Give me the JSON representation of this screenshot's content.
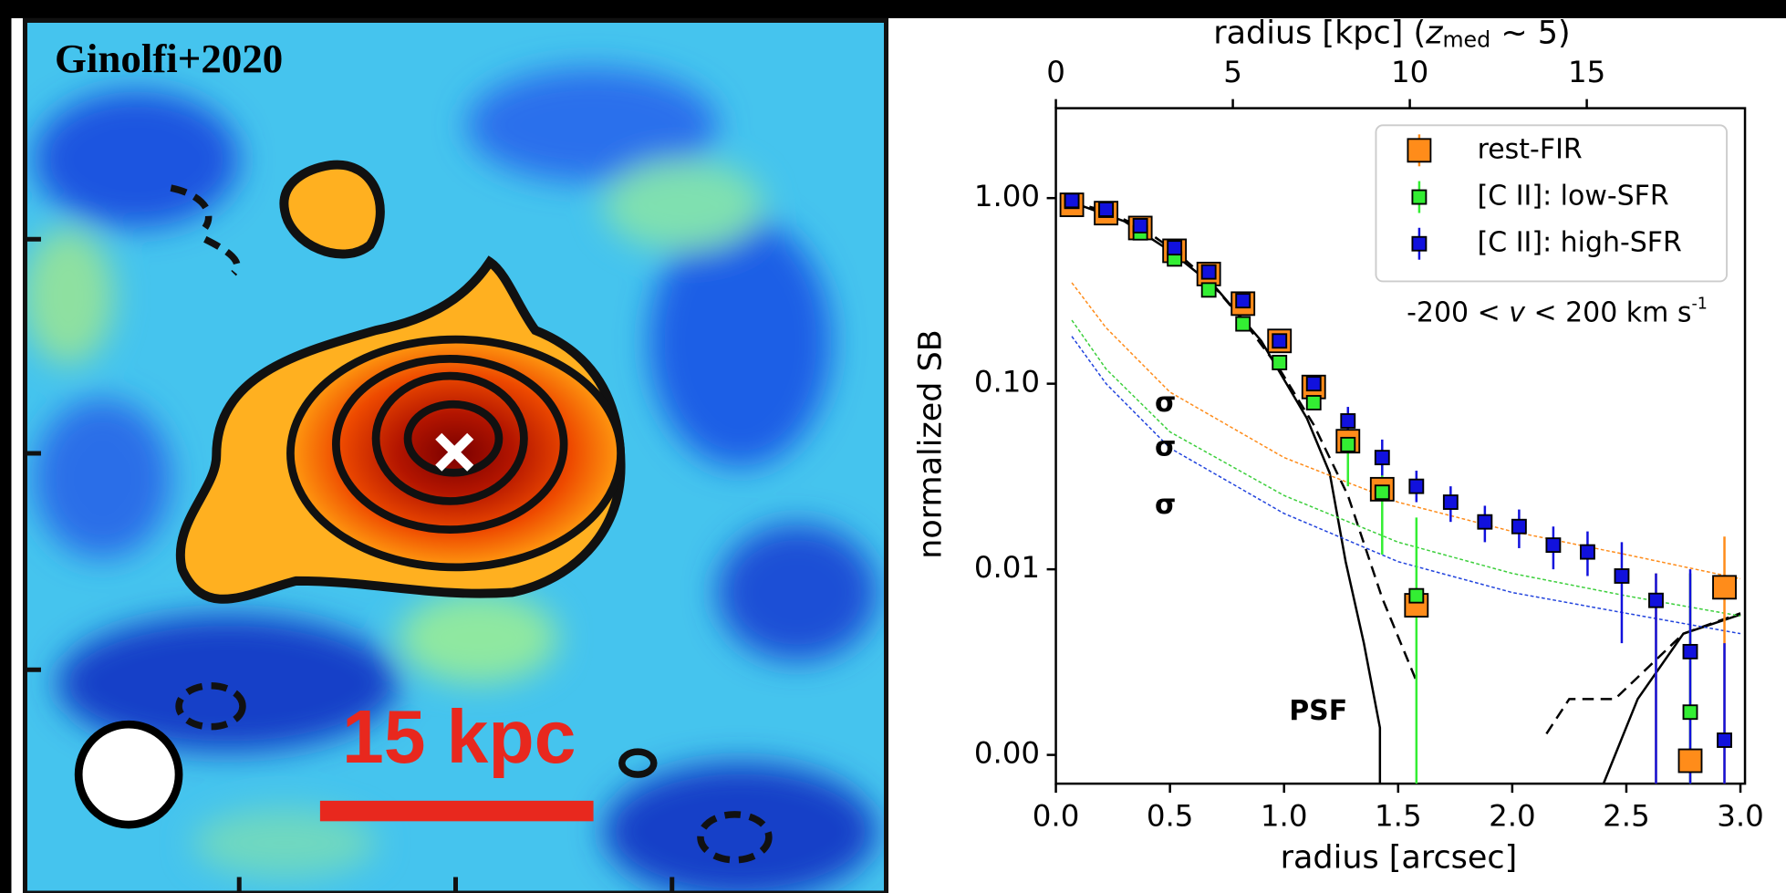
{
  "image_panel": {
    "label": "Ginolfi+2020",
    "scale_label": "15 kpc"
  },
  "chart_data": {
    "type": "scatter",
    "xlabel": "radius [arcsec]",
    "ylabel": "normalized SB",
    "xlabel_top": [
      "radius [kpc] (",
      "z",
      "med",
      " ∼ 5)"
    ],
    "xlim": [
      0,
      3.02
    ],
    "xticks": [
      {
        "value": 0,
        "label": "0.0"
      },
      0.5,
      {
        "value": 1,
        "label": "1.0"
      },
      1.5,
      {
        "value": 2,
        "label": "2.0"
      },
      2.5,
      {
        "value": 3,
        "label": "3.0"
      }
    ],
    "x2lim": [
      0,
      19.47
    ],
    "x2ticks": [
      0,
      5,
      10,
      15
    ],
    "ylim": [
      0.0007,
      3.05
    ],
    "yticks": [
      {
        "value": 0.001,
        "label": "0.00"
      },
      0.01,
      {
        "value": 0.1,
        "label": "0.10"
      },
      {
        "value": 1,
        "label": "1.00"
      }
    ],
    "ylog": true,
    "legend": "upper right",
    "annotations": [
      {
        "text": "σ",
        "color": "#ff8c1a",
        "x": 0.48,
        "y": 0.078
      },
      {
        "text": "σ",
        "color": "#3ccf3c",
        "x": 0.48,
        "y": 0.045
      },
      {
        "text": "σ",
        "color": "#2244dd",
        "x": 0.48,
        "y": 0.022
      },
      {
        "text": "PSF",
        "color": "#000000",
        "x": 1.15,
        "y": 0.0017
      }
    ],
    "velocity_note": [
      "-200 < ",
      "v",
      " < 200 km s",
      "-1"
    ],
    "series": [
      {
        "x": [
          0.07,
          0.22,
          0.37,
          0.52,
          0.67,
          0.82,
          0.98,
          1.13,
          1.28,
          1.43,
          1.58,
          1.88,
          2.15,
          2.25,
          2.45,
          2.6,
          2.75,
          3.0
        ],
        "values": [
          0.95,
          0.85,
          0.7,
          0.52,
          0.36,
          0.22,
          0.12,
          0.06,
          0.025,
          0.007,
          0.0025,
          0.0007,
          0.0013,
          0.002,
          0.002,
          0.003,
          0.0045,
          0.0058
        ],
        "color": "#000000",
        "style": "dashed",
        "break_after": [
          10,
          11
        ]
      },
      {
        "x": [
          0.07,
          0.3,
          0.5,
          0.7,
          0.9,
          1.1,
          1.2,
          1.27,
          1.35,
          1.42,
          1.42,
          2.4,
          2.55,
          2.75,
          3.0
        ],
        "values": [
          0.95,
          0.75,
          0.52,
          0.33,
          0.17,
          0.065,
          0.033,
          0.011,
          0.004,
          0.0014,
          0.0007,
          0.0007,
          0.002,
          0.0045,
          0.0057
        ],
        "color": "#000000",
        "style": "solid",
        "break_after": [
          10
        ]
      },
      {
        "x": [
          0.07,
          0.22,
          0.5,
          1.0,
          1.5,
          2.0,
          2.5,
          3.0
        ],
        "values": [
          0.35,
          0.2,
          0.09,
          0.04,
          0.023,
          0.016,
          0.012,
          0.0089
        ],
        "color": "#ff8c1a",
        "style": "dotted"
      },
      {
        "x": [
          0.07,
          0.22,
          0.5,
          1.0,
          1.5,
          2.0,
          2.5,
          3.0
        ],
        "values": [
          0.22,
          0.12,
          0.055,
          0.025,
          0.014,
          0.0095,
          0.0072,
          0.0056
        ],
        "color": "#3ccf3c",
        "style": "dotted"
      },
      {
        "x": [
          0.07,
          0.22,
          0.5,
          1.0,
          1.5,
          2.0,
          2.5,
          3.0
        ],
        "values": [
          0.18,
          0.1,
          0.045,
          0.02,
          0.011,
          0.0075,
          0.0058,
          0.0045
        ],
        "color": "#2244dd",
        "style": "dotted"
      },
      {
        "name": "rest-FIR",
        "color": "#ff8c1a",
        "marker": "square",
        "size": 20,
        "x": [
          0.07,
          0.22,
          0.37,
          0.52,
          0.67,
          0.82,
          0.98,
          1.13,
          1.28,
          1.43,
          1.58,
          2.63,
          2.78,
          2.93
        ],
        "values": [
          0.92,
          0.83,
          0.69,
          0.52,
          0.39,
          0.27,
          0.17,
          0.096,
          0.049,
          0.027,
          0.0064,
          null,
          0.00093,
          0.008
        ],
        "err_low": [
          null,
          null,
          null,
          null,
          null,
          null,
          null,
          null,
          null,
          null,
          null,
          0.0007,
          0.0007,
          0.0007
        ],
        "err_high": [
          null,
          null,
          null,
          null,
          null,
          null,
          null,
          null,
          null,
          null,
          null,
          0.0095,
          0.0095,
          0.015
        ]
      },
      {
        "name": "[C II]: low-SFR",
        "color": "#33ee33",
        "marker": "square",
        "size": 12,
        "x": [
          0.07,
          0.22,
          0.37,
          0.52,
          0.67,
          0.82,
          0.98,
          1.13,
          1.28,
          1.43,
          1.58,
          2.78
        ],
        "values": [
          0.96,
          0.86,
          0.65,
          0.47,
          0.32,
          0.21,
          0.13,
          0.079,
          0.047,
          0.026,
          0.0072,
          0.0017
        ],
        "err_low": [
          null,
          null,
          null,
          null,
          null,
          null,
          null,
          null,
          0.028,
          0.012,
          0.0007,
          0.0007
        ],
        "err_high": [
          null,
          null,
          null,
          null,
          null,
          null,
          null,
          null,
          0.065,
          0.04,
          0.019,
          0.0095
        ]
      },
      {
        "name": "[C II]: high-SFR",
        "color": "#1111dd",
        "marker": "square",
        "size": 12,
        "x": [
          0.07,
          0.22,
          0.37,
          0.52,
          0.67,
          0.82,
          0.98,
          1.13,
          1.28,
          1.43,
          1.58,
          1.73,
          1.88,
          2.03,
          2.18,
          2.33,
          2.48,
          2.63,
          2.78,
          2.93
        ],
        "values": [
          0.97,
          0.87,
          0.71,
          0.54,
          0.4,
          0.28,
          0.17,
          0.1,
          0.063,
          0.04,
          0.028,
          0.023,
          0.018,
          0.017,
          0.0135,
          0.0124,
          0.0092,
          0.0068,
          0.0036,
          0.0012
        ],
        "err_low": [
          null,
          null,
          null,
          null,
          null,
          null,
          null,
          null,
          0.05,
          0.032,
          0.023,
          0.018,
          0.014,
          0.013,
          0.01,
          0.0092,
          0.004,
          0.0007,
          0.0007,
          0.0007
        ],
        "err_high": [
          null,
          null,
          null,
          null,
          null,
          null,
          null,
          null,
          0.075,
          0.05,
          0.034,
          0.028,
          0.022,
          0.021,
          0.017,
          0.016,
          0.014,
          0.0095,
          0.01,
          0.004
        ]
      }
    ]
  }
}
